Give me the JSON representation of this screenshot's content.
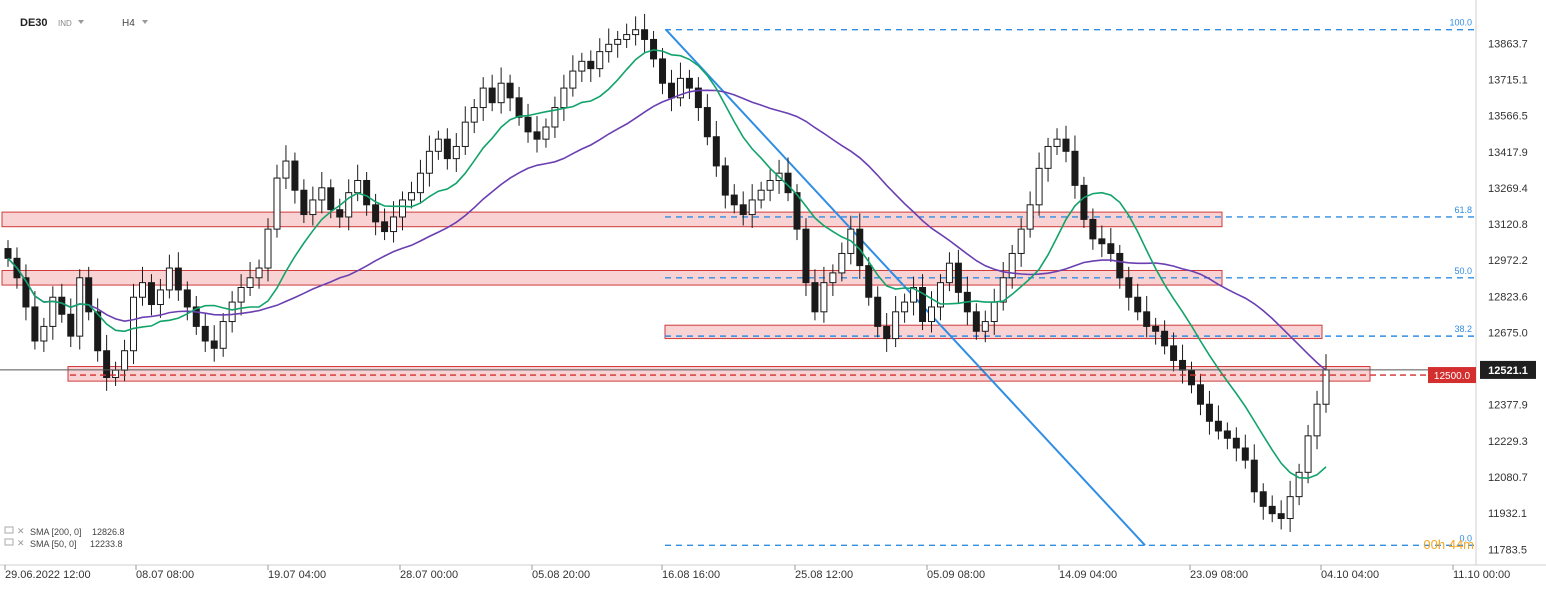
{
  "header": {
    "symbol": "DE30",
    "market": "IND",
    "timeframe": "H4"
  },
  "indicators": [
    {
      "label": "SMA [200, 0]",
      "value": "12826.8",
      "color": "#6a3fb2"
    },
    {
      "label": "SMA [50, 0]",
      "value": "12233.8",
      "color": "#12a36b"
    }
  ],
  "price_scale": {
    "labels": [
      "13863.7",
      "13715.1",
      "13566.5",
      "13417.9",
      "13269.4",
      "13120.8",
      "12972.2",
      "12823.6",
      "12675.0",
      "12377.9",
      "12229.3",
      "12080.7",
      "11932.1",
      "11783.5"
    ],
    "current_price": "12521.1",
    "alert_price": "12500.0",
    "countdown": "00h 44m"
  },
  "time_scale": {
    "labels": [
      "29.06.2022  12:00",
      "08.07  08:00",
      "19.07  04:00",
      "28.07  00:00",
      "05.08  20:00",
      "16.08  16:00",
      "25.08  12:00",
      "05.09  08:00",
      "14.09  04:00",
      "23.09  08:00",
      "04.10  04:00",
      "11.10  00:00"
    ]
  },
  "fibonacci": {
    "levels": [
      {
        "label": "100.0",
        "price": 13920
      },
      {
        "label": "61.8",
        "price": 13150
      },
      {
        "label": "50.0",
        "price": 12900
      },
      {
        "label": "38.2",
        "price": 12660
      },
      {
        "label": "0.0",
        "price": 11800
      }
    ]
  },
  "colors": {
    "up": "#ffffff",
    "down": "#1a1a1a",
    "fib": "#2f8de4",
    "zone_fill": "#f9d3d3",
    "zone_border": "#cf3a3a",
    "trendline": "#2f8de4",
    "sma200": "#6a3fb2",
    "sma50": "#12a36b",
    "alert": "#d32f2f",
    "current": "#1f1f1f"
  },
  "chart_data": {
    "type": "candlestick",
    "instrument": "DE30",
    "timeframe": "H4",
    "y_range": [
      11760,
      13960
    ],
    "support_resistance_zones": [
      {
        "from": 13110,
        "to": 13170
      },
      {
        "from": 12870,
        "to": 12930
      },
      {
        "from": 12650,
        "to": 12705
      },
      {
        "from": 12475,
        "to": 12535
      }
    ],
    "trendline": {
      "from_price": 13920,
      "to_price": 11800
    },
    "candles_close": [
      12980,
      12900,
      12780,
      12640,
      12700,
      12820,
      12750,
      12660,
      12900,
      12760,
      12600,
      12490,
      12520,
      12600,
      12820,
      12880,
      12790,
      12850,
      12940,
      12850,
      12780,
      12700,
      12640,
      12610,
      12720,
      12800,
      12860,
      12900,
      12940,
      13100,
      13310,
      13380,
      13260,
      13160,
      13220,
      13270,
      13180,
      13150,
      13250,
      13300,
      13200,
      13130,
      13090,
      13150,
      13220,
      13250,
      13330,
      13420,
      13470,
      13390,
      13440,
      13540,
      13600,
      13680,
      13620,
      13700,
      13640,
      13560,
      13500,
      13470,
      13520,
      13600,
      13680,
      13750,
      13790,
      13760,
      13830,
      13860,
      13880,
      13900,
      13920,
      13880,
      13800,
      13700,
      13640,
      13720,
      13680,
      13600,
      13480,
      13360,
      13240,
      13200,
      13160,
      13220,
      13260,
      13300,
      13330,
      13250,
      13100,
      12880,
      12760,
      12880,
      12920,
      13000,
      13100,
      12950,
      12820,
      12700,
      12650,
      12760,
      12800,
      12860,
      12720,
      12780,
      12880,
      12960,
      12840,
      12760,
      12680,
      12720,
      12800,
      12900,
      13000,
      13100,
      13200,
      13350,
      13440,
      13470,
      13420,
      13280,
      13140,
      13060,
      13040,
      13000,
      12900,
      12820,
      12760,
      12700,
      12680,
      12620,
      12560,
      12520,
      12460,
      12380,
      12310,
      12270,
      12240,
      12200,
      12150,
      12020,
      11960,
      11930,
      11910,
      12000,
      12100,
      12250,
      12380,
      12521.1
    ]
  }
}
